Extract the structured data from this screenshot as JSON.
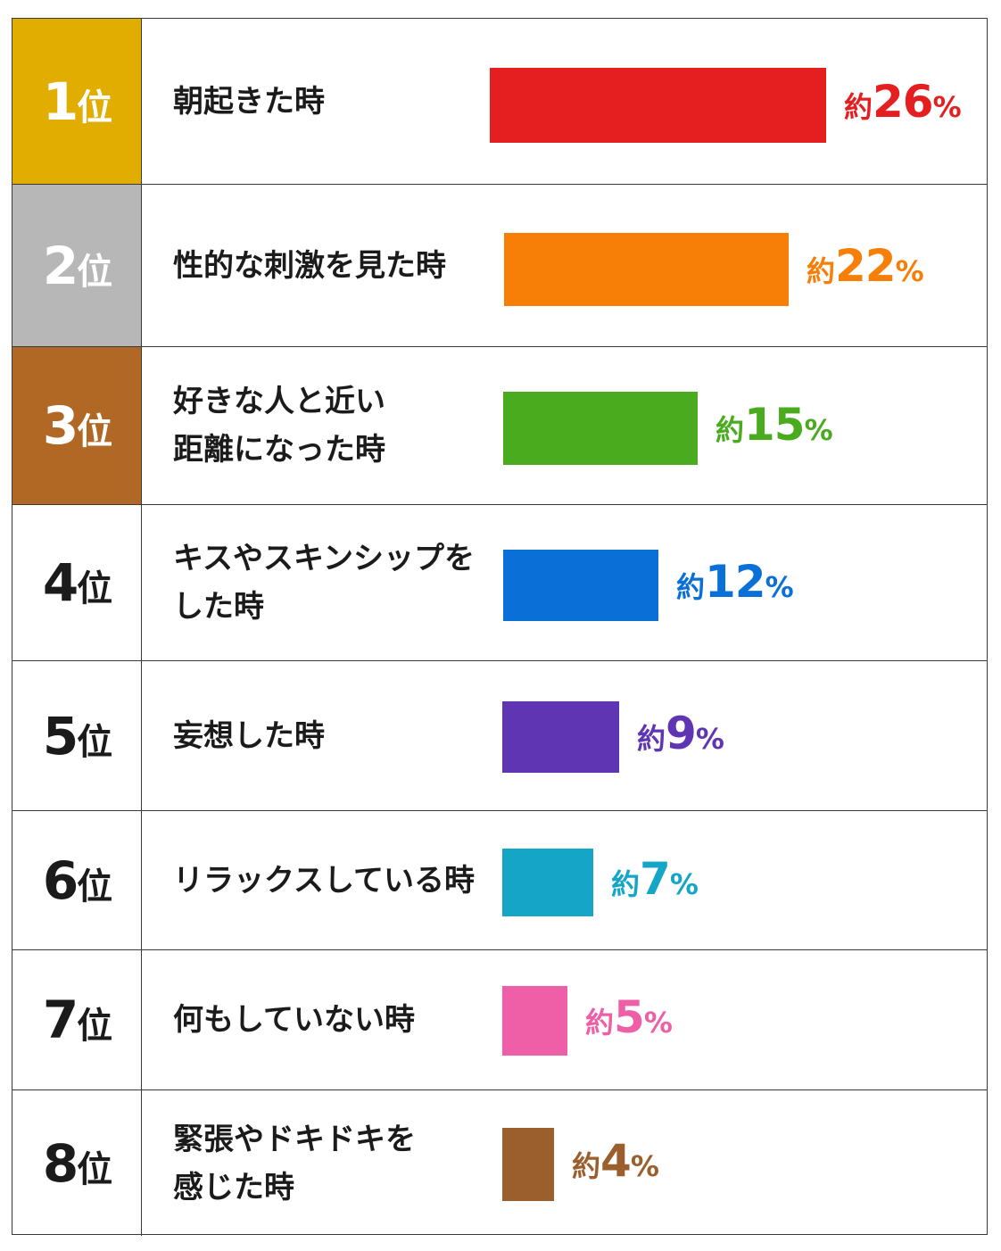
{
  "chart_data": {
    "type": "bar",
    "orientation": "horizontal",
    "value_prefix": "約",
    "value_unit": "%",
    "rank_suffix": "位",
    "rows": [
      {
        "rank": "1",
        "label": "朝起きた時",
        "value": 26,
        "value_text": "26",
        "color": "#e51f1f",
        "rank_bg": "#e1ad01"
      },
      {
        "rank": "2",
        "label": "性的な刺激を見た時",
        "value": 22,
        "value_text": "22",
        "color": "#f77f07",
        "rank_bg": "#b7b7b7"
      },
      {
        "rank": "3",
        "label": "好きな人と近い\n距離になった時",
        "value": 15,
        "value_text": "15",
        "color": "#4aab1e",
        "rank_bg": "#b06824"
      },
      {
        "rank": "4",
        "label": "キスやスキンシップを\nした時",
        "value": 12,
        "value_text": "12",
        "color": "#0a6fd6",
        "rank_bg": ""
      },
      {
        "rank": "5",
        "label": "妄想した時",
        "value": 9,
        "value_text": "9",
        "color": "#6035b4",
        "rank_bg": ""
      },
      {
        "rank": "6",
        "label": "リラックスしている時",
        "value": 7,
        "value_text": "7",
        "color": "#15a6c7",
        "rank_bg": ""
      },
      {
        "rank": "7",
        "label": "何もしていない時",
        "value": 5,
        "value_text": "5",
        "color": "#ef5fa7",
        "rank_bg": ""
      },
      {
        "rank": "8",
        "label": "緊張やドキドキを\n感じた時",
        "value": 4,
        "value_text": "4",
        "color": "#9b5f2e",
        "rank_bg": ""
      }
    ]
  }
}
